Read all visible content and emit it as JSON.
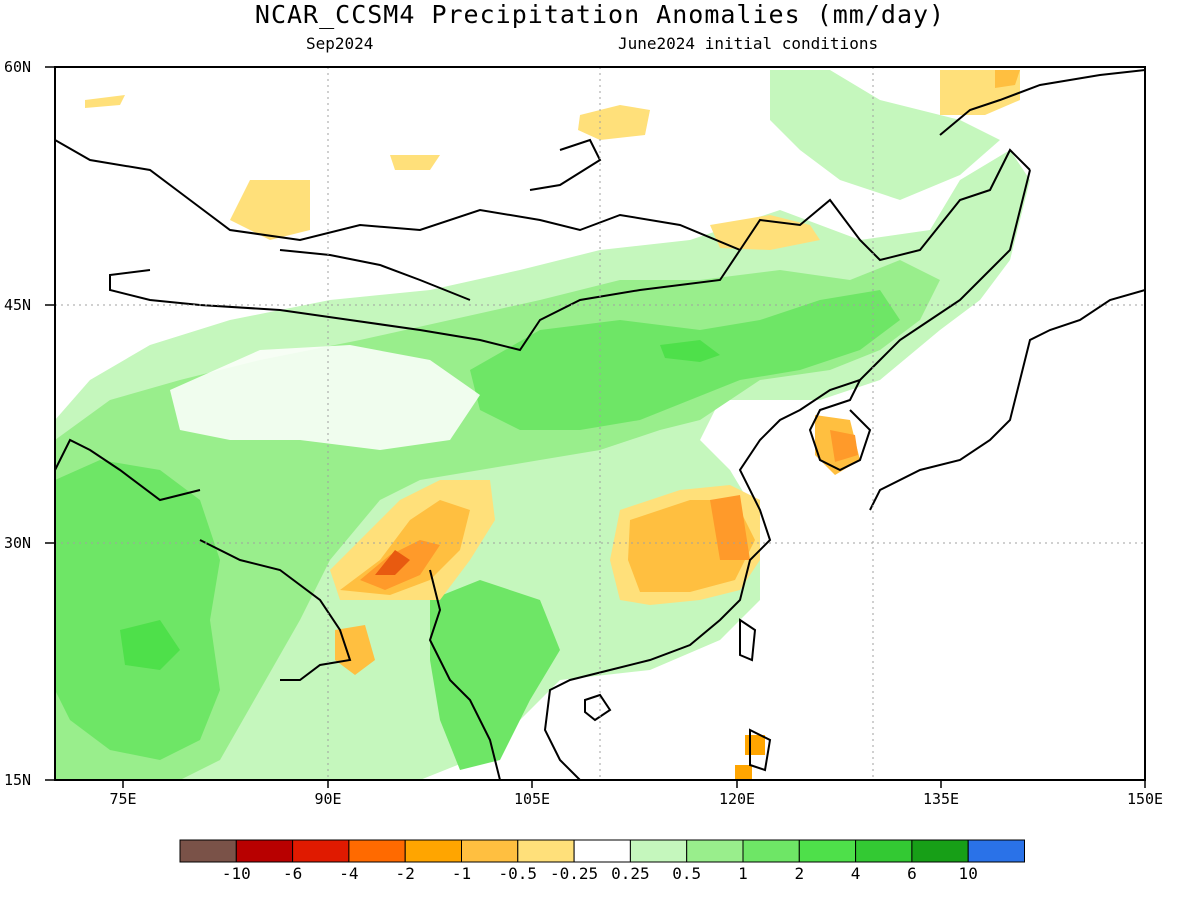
{
  "title": "NCAR_CCSM4 Precipitation Anomalies (mm/day)",
  "subtitle_left": "Sep2024",
  "subtitle_right": "June2024 initial conditions",
  "lat_labels": [
    "60N",
    "45N",
    "30N",
    "15N"
  ],
  "lon_labels": [
    "75E",
    "90E",
    "105E",
    "120E",
    "135E",
    "150E"
  ],
  "colorbar": {
    "colors": [
      "#7a5248",
      "#b80000",
      "#e01a00",
      "#ff6a00",
      "#ffa500",
      "#ffbf40",
      "#ffe07a",
      "#ffffff",
      "#c5f7bd",
      "#99ee8c",
      "#6ee666",
      "#4ee04a",
      "#33c933",
      "#179f17",
      "#2a72e8"
    ],
    "labels": [
      "-10",
      "-6",
      "-4",
      "-2",
      "-1",
      "-0.5",
      "-0.25",
      "0.25",
      "0.5",
      "1",
      "2",
      "4",
      "6",
      "10"
    ]
  },
  "chart_data": {
    "type": "heatmap",
    "variable": "Precipitation Anomalies",
    "units": "mm/day",
    "lon_range": [
      70,
      150
    ],
    "lat_range": [
      15,
      60
    ],
    "grid": "dotted 15-degree graticule",
    "regions": [
      {
        "area": "northern India",
        "class": "1 to 2"
      },
      {
        "area": "central China",
        "class": "1 to 2"
      },
      {
        "area": "northeast China",
        "class": "1 to 2"
      },
      {
        "area": "eastern China (Yangtze)",
        "class": "-1 to -0.5"
      },
      {
        "area": "southeast Tibet",
        "class": "-2 to -1"
      },
      {
        "area": "Korea",
        "class": "-1 to -0.5"
      },
      {
        "area": "Mongolia",
        "class": "-0.25 to 0.25"
      }
    ]
  }
}
